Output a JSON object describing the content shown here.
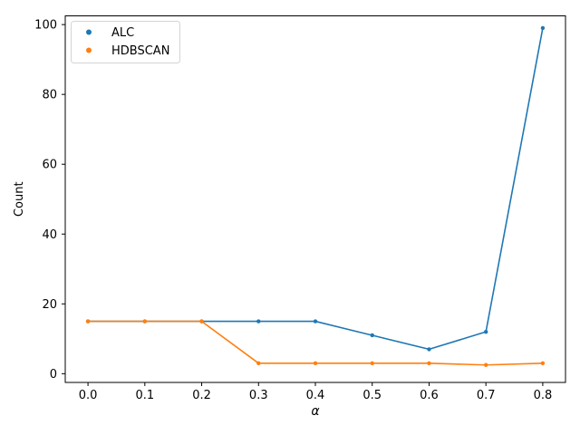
{
  "chart_data": {
    "type": "line",
    "title": "",
    "xlabel": "α",
    "ylabel": "Count",
    "x": [
      0.0,
      0.1,
      0.2,
      0.3,
      0.4,
      0.5,
      0.6,
      0.7,
      0.8
    ],
    "series": [
      {
        "name": "ALC",
        "color": "#1f77b4",
        "values": [
          15,
          15,
          15,
          15,
          15,
          11,
          7,
          12,
          99
        ]
      },
      {
        "name": "HDBSCAN",
        "color": "#ff7f0e",
        "values": [
          15,
          15,
          15,
          3,
          3,
          3,
          3,
          2.5,
          3
        ]
      }
    ],
    "xticks": [
      0.0,
      0.1,
      0.2,
      0.3,
      0.4,
      0.5,
      0.6,
      0.7,
      0.8
    ],
    "xtick_labels": [
      "0.0",
      "0.1",
      "0.2",
      "0.3",
      "0.4",
      "0.5",
      "0.6",
      "0.7",
      "0.8"
    ],
    "yticks": [
      0,
      20,
      40,
      60,
      80,
      100
    ],
    "ytick_labels": [
      "0",
      "20",
      "40",
      "60",
      "80",
      "100"
    ],
    "xlim": [
      -0.04,
      0.84
    ],
    "ylim": [
      -2.5,
      102.5
    ],
    "grid": false,
    "legend": {
      "position": "upper-left",
      "entries": [
        "ALC",
        "HDBSCAN"
      ]
    },
    "colors": {
      "spine": "#000000",
      "text": "#000000",
      "background": "#ffffff",
      "legend_border": "#d4d4d4"
    }
  }
}
